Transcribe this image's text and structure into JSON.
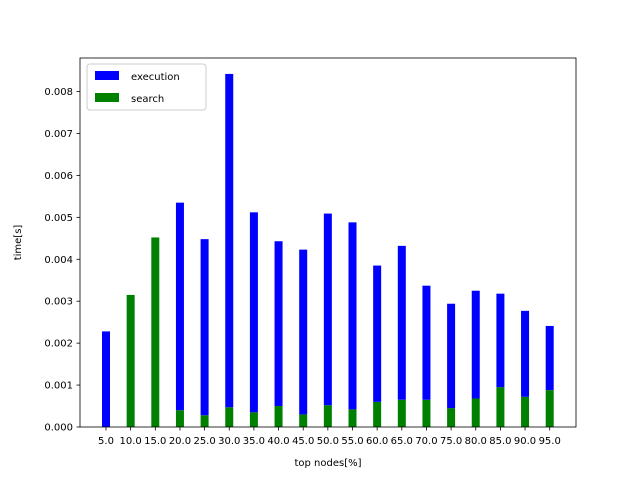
{
  "chart_data": {
    "type": "bar",
    "stacked": true,
    "title": "",
    "xlabel": "top nodes[%]",
    "ylabel": "time[s]",
    "categories": [
      "5.0",
      "10.0",
      "15.0",
      "20.0",
      "25.0",
      "30.0",
      "35.0",
      "40.0",
      "45.0",
      "50.0",
      "55.0",
      "60.0",
      "65.0",
      "70.0",
      "75.0",
      "80.0",
      "85.0",
      "90.0",
      "95.0"
    ],
    "ylim": [
      0,
      0.0088
    ],
    "yticks": [
      "0.000",
      "0.001",
      "0.002",
      "0.003",
      "0.004",
      "0.005",
      "0.006",
      "0.007",
      "0.008"
    ],
    "series": [
      {
        "name": "search",
        "color": "#008000",
        "values": [
          0.0,
          0.00315,
          0.00452,
          0.0004,
          0.00028,
          0.00047,
          0.00035,
          0.0005,
          0.0003,
          0.00052,
          0.00042,
          0.0006,
          0.00065,
          0.00065,
          0.00045,
          0.00068,
          0.00095,
          0.00072,
          0.00088
        ]
      },
      {
        "name": "execution",
        "color": "#0000ff",
        "values": [
          0.00228,
          0.0,
          0.0,
          0.00495,
          0.0042,
          0.00795,
          0.00477,
          0.00393,
          0.00393,
          0.00457,
          0.00446,
          0.00325,
          0.00367,
          0.00272,
          0.00249,
          0.00257,
          0.00223,
          0.00205,
          0.00153
        ]
      }
    ],
    "legend": {
      "position": "upper-left",
      "entries": [
        "execution",
        "search"
      ]
    },
    "grid": false
  }
}
